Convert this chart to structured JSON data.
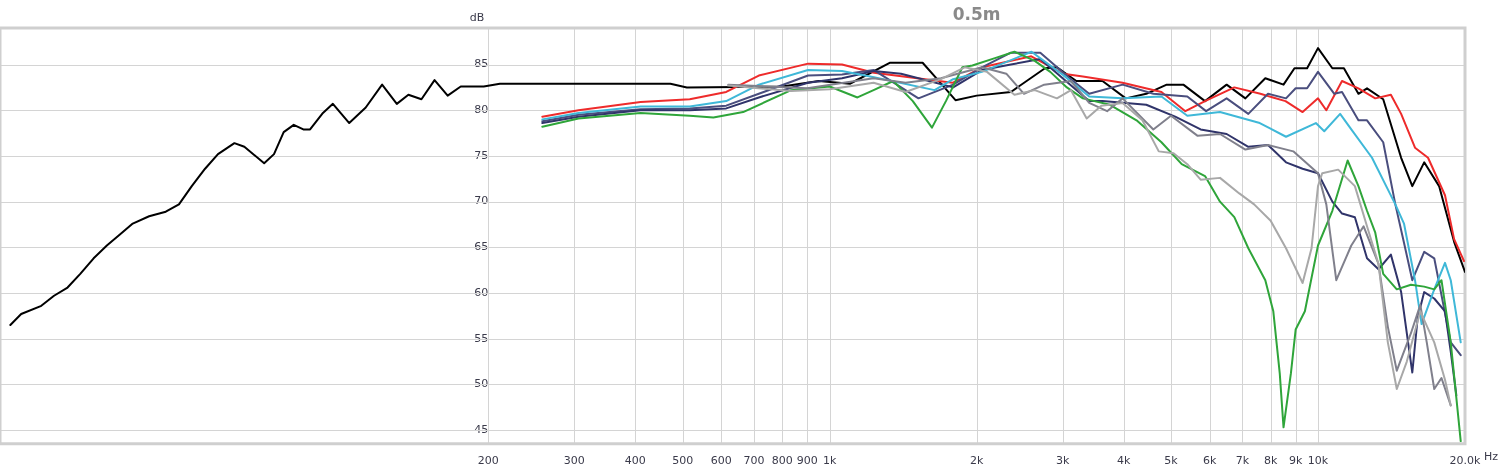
{
  "chart_data": {
    "type": "line",
    "title": "0.5m",
    "xlabel": "Hz",
    "ylabel": "dB",
    "log": "x",
    "grid": true,
    "xlim": [
      20,
      20000
    ],
    "ylim": [
      43.5,
      89
    ],
    "xticks": [
      200,
      300,
      400,
      500,
      600,
      700,
      800,
      900,
      {
        "value": 1000,
        "label": "1k"
      },
      {
        "value": 2000,
        "label": "2k"
      },
      {
        "value": 3000,
        "label": "3k"
      },
      {
        "value": 4000,
        "label": "4k"
      },
      {
        "value": 5000,
        "label": "5k"
      },
      {
        "value": 6000,
        "label": "6k"
      },
      {
        "value": 7000,
        "label": "7k"
      },
      {
        "value": 8000,
        "label": "8k"
      },
      {
        "value": 9000,
        "label": "9k"
      },
      {
        "value": 10000,
        "label": "10k"
      },
      {
        "value": 20000,
        "label": "20.0k"
      }
    ],
    "yticks": [
      45,
      50,
      55,
      60,
      65,
      70,
      75,
      80,
      85
    ],
    "series": [
      {
        "color": "#a8a8a8",
        "x": [
          620,
          834,
          1000,
          1230,
          1430,
          1690,
          1890,
          2100,
          2390,
          2630,
          2920,
          3120,
          3360,
          3600,
          3980,
          4370,
          4720,
          5060,
          5400,
          5750,
          6300,
          6900,
          7400,
          8000,
          8600,
          9300,
          9700,
          10000,
          10200,
          11000,
          11900,
          12600,
          13300,
          13900,
          14500,
          15200,
          16200,
          17300,
          18200,
          18700
        ],
        "values": [
          82.7,
          82.1,
          82.3,
          83.0,
          82.0,
          83.4,
          84.7,
          84.2,
          81.7,
          82.2,
          81.3,
          82.2,
          79.1,
          80.5,
          80.8,
          78.9,
          75.5,
          75.3,
          74.1,
          72.4,
          72.6,
          70.9,
          69.7,
          67.9,
          64.9,
          61.1,
          64.9,
          71.7,
          73.1,
          73.5,
          71.7,
          67.3,
          63.2,
          54.6,
          49.5,
          52.5,
          58.0,
          54.6,
          50.5,
          47.7
        ]
      },
      {
        "color": "#80808c",
        "x": [
          620,
          900,
          1230,
          1430,
          1690,
          2050,
          2300,
          2500,
          2750,
          3120,
          3400,
          3700,
          3980,
          4600,
          5000,
          5670,
          6300,
          7100,
          7900,
          8900,
          10000,
          10400,
          10900,
          11700,
          12400,
          13300,
          13900,
          14500,
          15500,
          16200,
          16700,
          17300,
          17900,
          18700
        ],
        "values": [
          82.8,
          82.4,
          83.5,
          83.0,
          83.5,
          84.7,
          84.0,
          81.8,
          82.8,
          83.2,
          80.8,
          79.9,
          81.3,
          77.9,
          79.4,
          77.2,
          77.4,
          75.7,
          76.2,
          75.5,
          73.1,
          69.7,
          61.4,
          65.2,
          67.3,
          63.2,
          56.3,
          51.5,
          55.6,
          58.7,
          54.6,
          49.5,
          50.7,
          47.7
        ]
      },
      {
        "color": "#2fa53a",
        "x": [
          258,
          306,
          410,
          517,
          578,
          665,
          834,
          1000,
          1140,
          1230,
          1350,
          1480,
          1620,
          1730,
          1870,
          1960,
          2180,
          2390,
          2630,
          2830,
          3060,
          3300,
          3750,
          4250,
          4780,
          5260,
          5870,
          6300,
          6740,
          7200,
          7800,
          8100,
          8350,
          8500,
          8800,
          9000,
          9400,
          10000,
          10700,
          11500,
          12100,
          12600,
          13100,
          13600,
          14500,
          15500,
          16500,
          17300,
          17900,
          18700,
          19600
        ],
        "values": [
          78.2,
          79.1,
          79.7,
          79.4,
          79.2,
          79.8,
          82.2,
          82.6,
          81.4,
          82.2,
          83.2,
          81.0,
          78.1,
          81.0,
          84.7,
          84.9,
          85.7,
          86.4,
          85.4,
          84.2,
          82.5,
          81.3,
          80.6,
          78.9,
          76.5,
          74.1,
          72.8,
          70.0,
          68.3,
          64.9,
          61.4,
          58.0,
          51.2,
          45.3,
          51.2,
          56.0,
          58.0,
          65.2,
          69.0,
          74.5,
          71.7,
          69.0,
          66.6,
          62.1,
          60.4,
          60.9,
          60.7,
          60.4,
          61.4,
          54.6,
          43.8
        ]
      },
      {
        "color": "#3fb8d8",
        "x": [
          258,
          306,
          410,
          517,
          614,
          716,
          903,
          1060,
          1232,
          1640,
          1790,
          2050,
          2590,
          3000,
          3400,
          3980,
          4780,
          5400,
          6300,
          7600,
          8600,
          9900,
          10300,
          11100,
          11700,
          12900,
          14400,
          15000,
          15800,
          16300,
          17300,
          18200,
          18700,
          19600
        ],
        "values": [
          79.0,
          79.7,
          80.4,
          80.4,
          81.0,
          82.8,
          84.4,
          84.3,
          83.6,
          82.2,
          83.4,
          84.2,
          86.4,
          83.9,
          81.5,
          81.3,
          81.5,
          79.4,
          79.8,
          78.6,
          77.1,
          78.6,
          77.7,
          79.6,
          77.9,
          74.8,
          69.7,
          67.6,
          61.4,
          56.6,
          60.4,
          63.3,
          61.4,
          54.6
        ]
      },
      {
        "color": "#30346a",
        "x": [
          258,
          306,
          410,
          517,
          614,
          716,
          903,
          1060,
          1232,
          1400,
          1520,
          1790,
          2050,
          2350,
          2700,
          3000,
          3400,
          3620,
          4450,
          5100,
          5750,
          6500,
          7200,
          7900,
          8600,
          9300,
          10000,
          10700,
          11200,
          11900,
          12600,
          13300,
          14100,
          14800,
          15200,
          15600,
          16000,
          16500,
          17300,
          18200,
          18700,
          19200
        ],
        "values": [
          78.6,
          79.3,
          80.0,
          80.0,
          80.2,
          81.4,
          83.0,
          83.5,
          84.3,
          84.0,
          83.5,
          82.5,
          84.4,
          85.0,
          85.6,
          83.5,
          81.0,
          81.0,
          80.6,
          79.3,
          77.9,
          77.4,
          76.0,
          76.2,
          74.3,
          73.6,
          73.1,
          70.0,
          68.7,
          68.3,
          63.8,
          62.6,
          64.2,
          60.1,
          55.6,
          51.3,
          57.3,
          60.1,
          59.4,
          58.0,
          53.6,
          48.8
        ]
      },
      {
        "color": "#4a4e7e",
        "x": [
          258,
          306,
          410,
          517,
          614,
          716,
          903,
          1060,
          1232,
          1520,
          1790,
          2050,
          2350,
          2700,
          3120,
          3400,
          3980,
          4600,
          5400,
          5900,
          6500,
          7200,
          7900,
          8600,
          9000,
          9500,
          10000,
          10800,
          11200,
          12100,
          12600,
          13600,
          14400,
          15000,
          15600,
          16500,
          17300,
          18700,
          19600
        ],
        "values": [
          78.8,
          79.5,
          80.1,
          80.2,
          80.5,
          81.8,
          83.8,
          83.9,
          84.4,
          81.3,
          82.8,
          84.7,
          86.3,
          86.3,
          83.4,
          81.8,
          82.8,
          81.8,
          81.5,
          79.9,
          81.3,
          79.6,
          81.8,
          81.3,
          82.4,
          82.4,
          84.2,
          81.8,
          82.0,
          78.9,
          78.9,
          76.5,
          69.7,
          65.5,
          61.4,
          64.5,
          63.8,
          54.6,
          53.2
        ]
      },
      {
        "color": "#ee2b2b",
        "x": [
          258,
          306,
          410,
          517,
          614,
          716,
          903,
          1060,
          1232,
          1785,
          2052,
          2587,
          3008,
          3300,
          3980,
          4780,
          5350,
          5870,
          6740,
          7620,
          8580,
          9300,
          10000,
          10400,
          11200,
          12100,
          13100,
          14100,
          14800,
          15800,
          16800,
          18200,
          19000,
          19900
        ],
        "values": [
          79.3,
          80.0,
          80.9,
          81.2,
          82.0,
          83.8,
          85.1,
          85.0,
          84.1,
          83.0,
          84.7,
          85.9,
          84.0,
          83.7,
          83.0,
          82.0,
          79.9,
          81.0,
          82.5,
          81.8,
          81.0,
          79.8,
          81.3,
          80.0,
          83.2,
          82.4,
          81.3,
          81.7,
          79.6,
          75.9,
          74.8,
          70.7,
          65.9,
          63.5
        ]
      },
      {
        "color": "#000000",
        "x": [
          21,
          22.1,
          24.3,
          25.8,
          27.5,
          29.2,
          31.1,
          33.1,
          35.2,
          37.4,
          40.4,
          43.7,
          46.5,
          49.4,
          52.6,
          55.9,
          60.4,
          63.3,
          69.5,
          72.8,
          76.2,
          79.9,
          83.6,
          86.3,
          91.7,
          96.1,
          103.8,
          112.2,
          121.2,
          129.9,
          137.2,
          145.9,
          155.2,
          165.1,
          175.6,
          195.7,
          211.2,
          300,
          472,
          510,
          800,
          950,
          1100,
          1330,
          1550,
          1660,
          1810,
          2000,
          2350,
          2760,
          2920,
          3200,
          3620,
          4040,
          4450,
          4900,
          5300,
          5870,
          6500,
          7100,
          7800,
          8500,
          8950,
          9500,
          10000,
          10700,
          11300,
          12100,
          12600,
          13600,
          14800,
          15600,
          16500,
          17700,
          19000,
          20000
        ],
        "values": [
          56.5,
          57.7,
          58.6,
          59.7,
          60.6,
          62.1,
          63.8,
          65.2,
          66.4,
          67.6,
          68.4,
          68.9,
          69.7,
          71.7,
          73.6,
          75.2,
          76.4,
          76.0,
          74.2,
          75.2,
          77.6,
          78.4,
          77.9,
          77.9,
          79.7,
          80.7,
          78.6,
          80.3,
          82.8,
          80.7,
          81.7,
          81.2,
          83.3,
          81.6,
          82.6,
          82.6,
          82.9,
          82.9,
          82.9,
          82.5,
          82.6,
          83.2,
          82.9,
          85.2,
          85.2,
          83.4,
          81.1,
          81.6,
          82.0,
          84.6,
          84.7,
          83.2,
          83.2,
          81.3,
          81.8,
          82.8,
          82.8,
          81.0,
          82.8,
          81.3,
          83.5,
          82.8,
          84.6,
          84.6,
          86.8,
          84.6,
          84.6,
          81.8,
          82.4,
          81.2,
          74.8,
          71.7,
          74.3,
          71.7,
          65.6,
          62.3
        ]
      }
    ]
  }
}
